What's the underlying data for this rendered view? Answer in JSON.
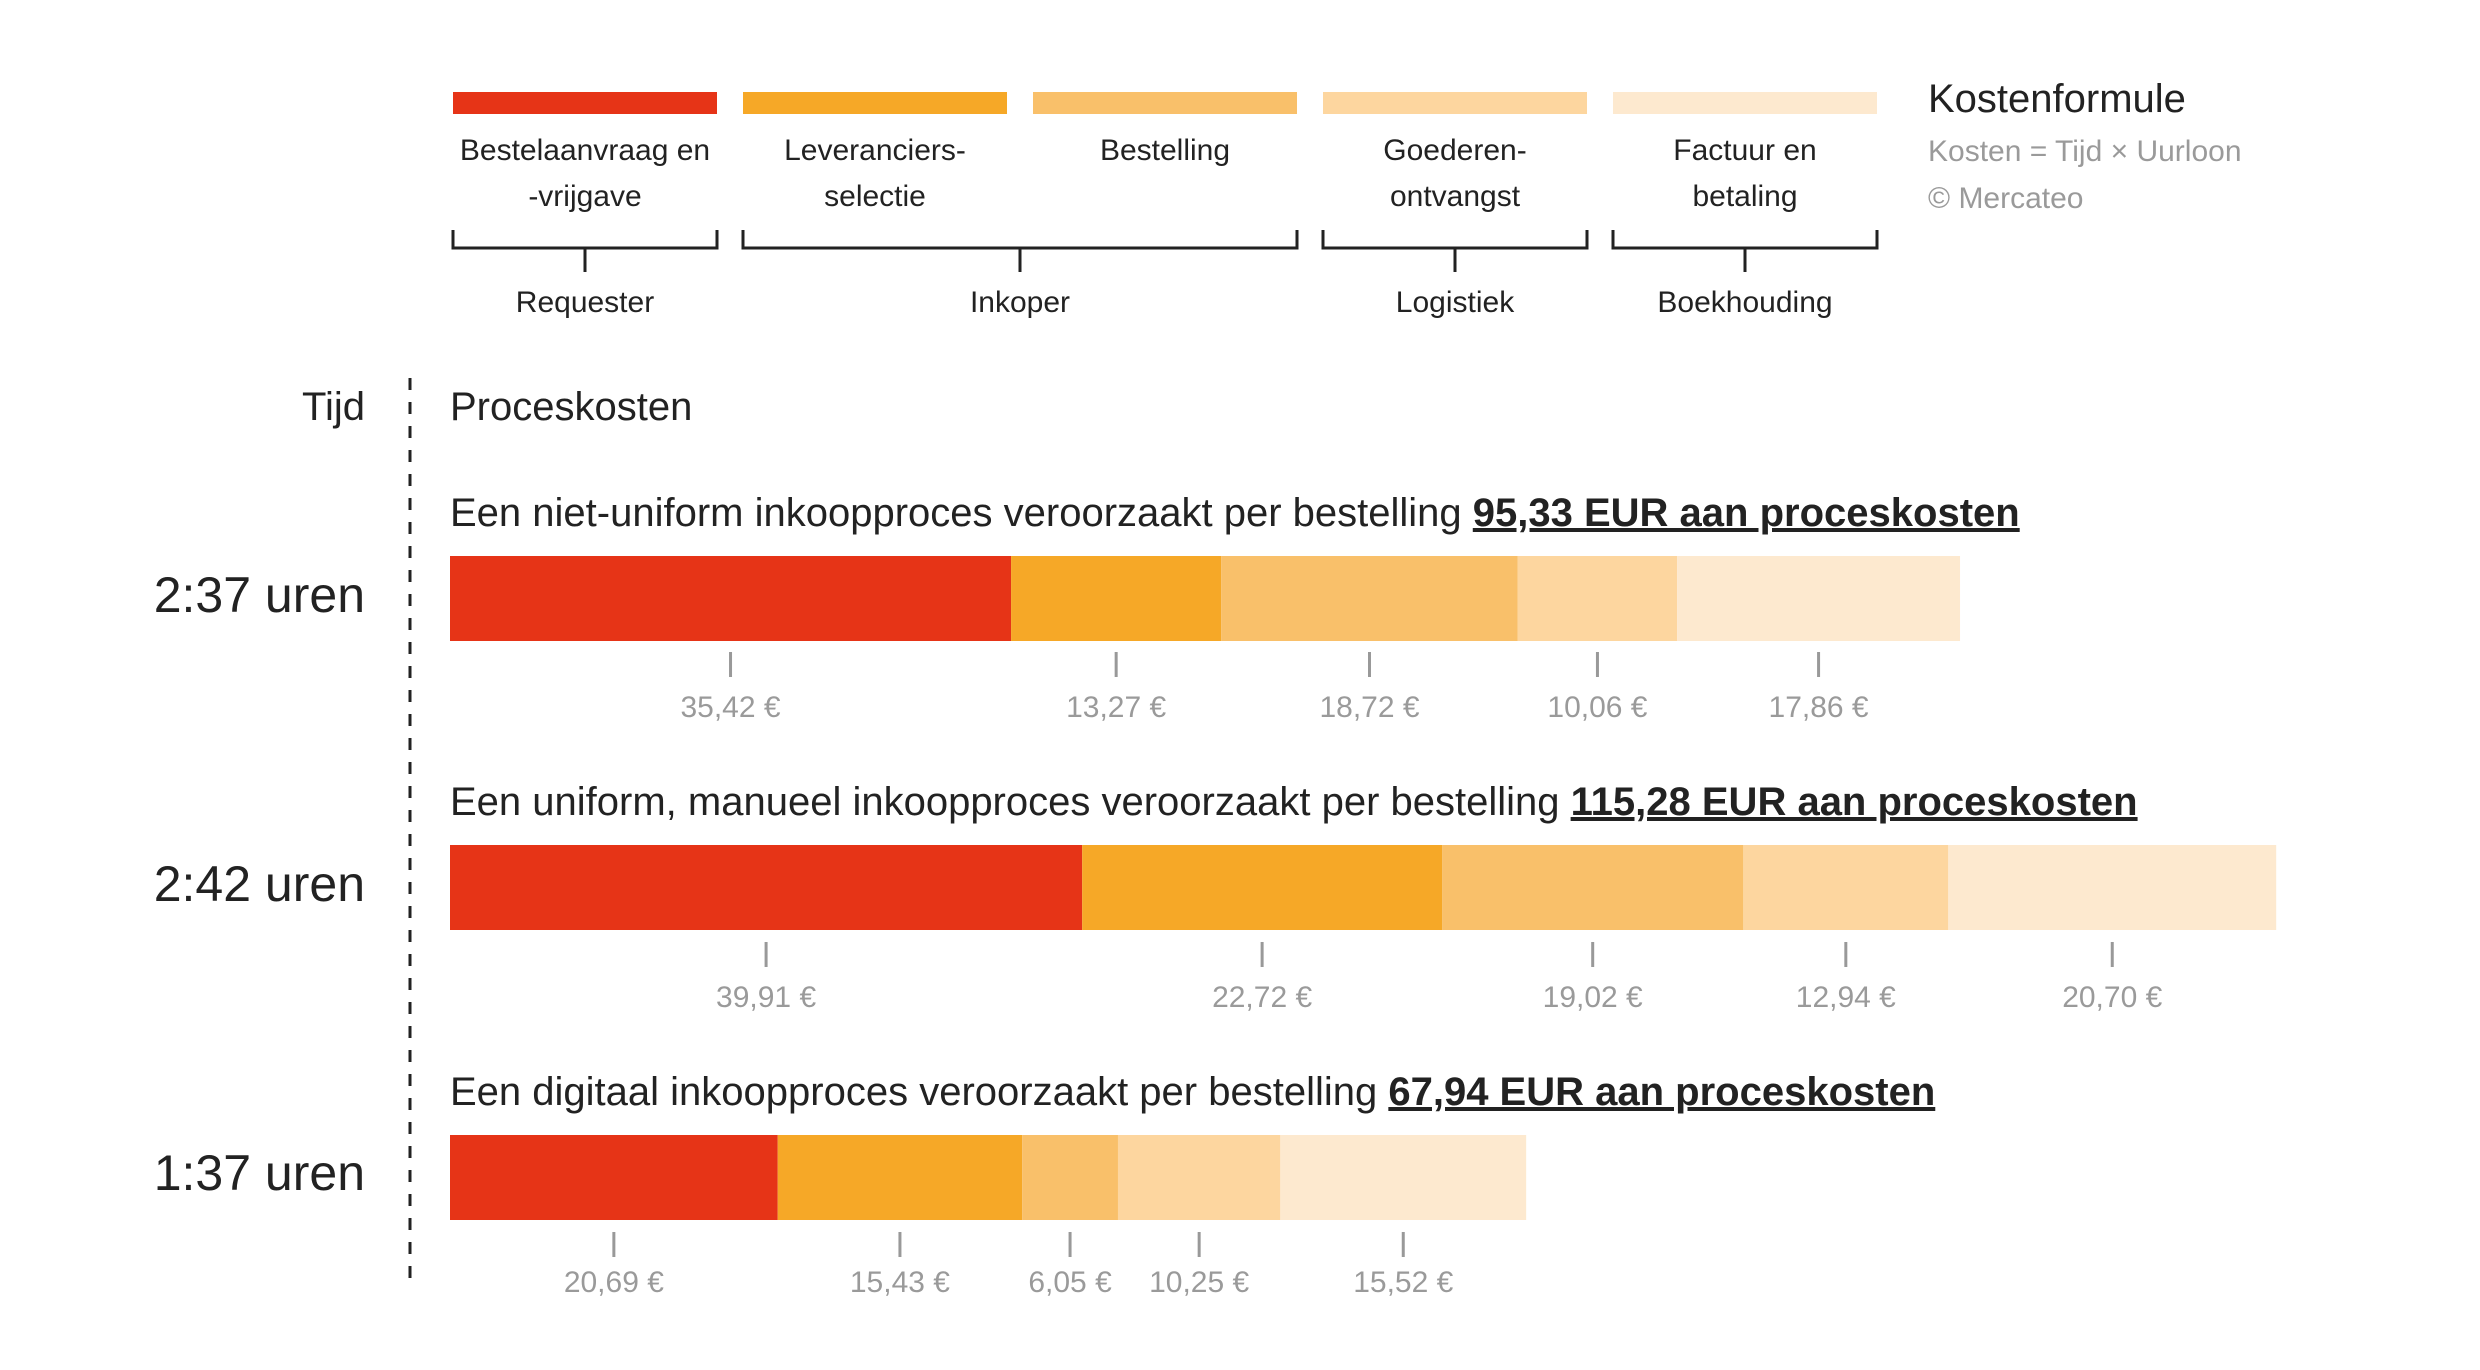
{
  "chart_data": {
    "type": "bar",
    "legend": {
      "items": [
        {
          "label_lines": [
            "Bestelaanvraag en",
            "-vrijgave"
          ],
          "color": "#E63417"
        },
        {
          "label_lines": [
            "Leveranciers-",
            "selectie"
          ],
          "color": "#F6A827"
        },
        {
          "label_lines": [
            "Bestelling"
          ],
          "color": "#F9C06A"
        },
        {
          "label_lines": [
            "Goederen-",
            "ontvangst"
          ],
          "color": "#FDD69F"
        },
        {
          "label_lines": [
            "Factuur en",
            "betaling"
          ],
          "color": "#FDE9CF"
        }
      ],
      "groups": [
        {
          "label": "Requester",
          "items": [
            0,
            0
          ]
        },
        {
          "label": "Inkoper",
          "items": [
            1,
            2
          ]
        },
        {
          "label": "Logistiek",
          "items": [
            3,
            3
          ]
        },
        {
          "label": "Boekhouding",
          "items": [
            4,
            4
          ]
        }
      ]
    },
    "formula": {
      "title": "Kostenformule",
      "lines": [
        "Kosten = Tijd × Uurloon",
        "© Mercateo"
      ]
    },
    "time_header": "Tijd",
    "cost_header": "Proceskosten",
    "processes": [
      {
        "time": "2:37 uren",
        "title": "Een niet-uniform inkoopproces veroorzaakt per bestelling ",
        "total_label": "95,33 EUR aan proceskosten",
        "values": [
          35.42,
          13.27,
          18.72,
          10.06,
          17.86
        ],
        "value_labels": [
          "35,42 €",
          "13,27 €",
          "18,72 €",
          "10,06 €",
          "17,86 €"
        ]
      },
      {
        "time": "2:42 uren",
        "title": "Een uniform, manueel inkoopproces veroorzaakt per bestelling ",
        "total_label": "115,28 EUR aan proceskosten",
        "values": [
          39.91,
          22.72,
          19.02,
          12.94,
          20.7
        ],
        "value_labels": [
          "39,91 €",
          "22,72 €",
          "19,02 €",
          "12,94 €",
          "20,70 €"
        ]
      },
      {
        "time": "1:37 uren",
        "title": "Een digitaal inkoopproces veroorzaakt per bestelling ",
        "total_label": "67,94 EUR aan proceskosten",
        "values": [
          20.69,
          15.43,
          6.05,
          10.25,
          15.52
        ],
        "value_labels": [
          "20,69 €",
          "15,43 €",
          "6,05 €",
          "10,25 €",
          "15,52 €"
        ]
      }
    ],
    "colors": {
      "text": "#222222",
      "muted": "#9A9A9A",
      "tick": "#999999"
    }
  }
}
